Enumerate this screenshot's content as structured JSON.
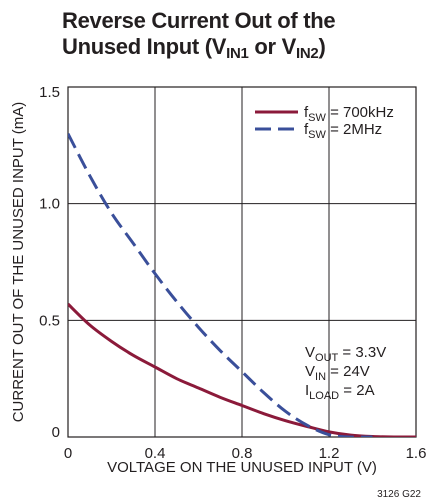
{
  "title": {
    "line1": "Reverse Current Out of the",
    "line2_prefix": "Unused Input (V",
    "line2_sub1": "IN1",
    "line2_mid": " or V",
    "line2_sub2": "IN2",
    "line2_suffix": ")"
  },
  "figure_code": "3126 G22",
  "colors": {
    "series1": "#8b1a3a",
    "series2": "#3a4f9a",
    "grid": "#231f20",
    "text": "#231f20"
  },
  "conditions": [
    {
      "main": "V",
      "sub": "OUT",
      "rest": " = 3.3V"
    },
    {
      "main": "V",
      "sub": "IN",
      "rest": " = 24V"
    },
    {
      "main": "I",
      "sub": "LOAD",
      "rest": " = 2A"
    }
  ],
  "chart_data": {
    "type": "line",
    "title": "Reverse Current Out of the Unused Input (VIN1 or VIN2)",
    "xlabel": "VOLTAGE ON THE UNUSED INPUT (V)",
    "ylabel": "CURRENT OUT OF THE UNUSED INPUT (mA)",
    "xlim": [
      0,
      1.6
    ],
    "ylim": [
      0,
      1.5
    ],
    "xticks": [
      "0",
      "0.4",
      "0.8",
      "1.2",
      "1.6"
    ],
    "yticks": [
      "0",
      "0.5",
      "1.0",
      "1.5"
    ],
    "grid": true,
    "legend_position": "top-right",
    "series": [
      {
        "name_main": "f",
        "name_sub": "SW",
        "name_rest": " = 700kHz",
        "style": "solid",
        "x": [
          0,
          0.1,
          0.2,
          0.3,
          0.4,
          0.5,
          0.6,
          0.7,
          0.8,
          0.9,
          1.0,
          1.1,
          1.2,
          1.3,
          1.4,
          1.5,
          1.6
        ],
        "y": [
          0.57,
          0.48,
          0.41,
          0.35,
          0.3,
          0.25,
          0.21,
          0.17,
          0.135,
          0.1,
          0.07,
          0.045,
          0.022,
          0.008,
          0.002,
          0.0,
          0.0
        ]
      },
      {
        "name_main": "f",
        "name_sub": "SW",
        "name_rest": " = 2MHz",
        "style": "dashed",
        "x": [
          0,
          0.1,
          0.2,
          0.3,
          0.4,
          0.5,
          0.6,
          0.7,
          0.8,
          0.9,
          1.0,
          1.1,
          1.2,
          1.3,
          1.4
        ],
        "y": [
          1.3,
          1.12,
          0.96,
          0.83,
          0.7,
          0.58,
          0.47,
          0.37,
          0.28,
          0.19,
          0.11,
          0.05,
          0.01,
          0.0,
          0.0
        ]
      }
    ]
  }
}
